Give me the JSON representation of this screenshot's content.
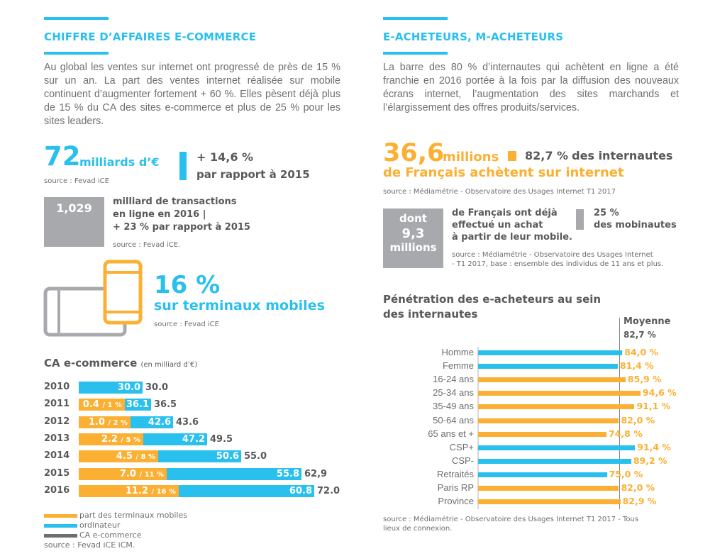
{
  "colors": {
    "blue": "#29c0ee",
    "orange": "#fbb034",
    "gray": "#a7a9ac",
    "dark_gray": "#58595b"
  },
  "left": {
    "title": "CHIFFRE D’AFFAIRES E-COMMERCE",
    "intro": "Au global les ventes sur internet ont progressé de près de 15 % sur un an. La part des ventes internet réalisée sur mobile continuent d’augmenter fortement + 60 %. Elles pèsent déjà plus de 15 % du CA des sites e-commerce et plus de 25 % pour les sites leaders.",
    "kpi_value": "72",
    "kpi_unit": "milliards d’€",
    "kpi_source": "source : Fevad iCE",
    "growth_value": "+ 14,6 %",
    "growth_label": "par rapport à 2015",
    "transactions_value": "1,029",
    "transactions_line1": "milliard de transactions",
    "transactions_line2": "en ligne en 2016 |",
    "transactions_line3": "+ 23 % par rapport à 2015",
    "transactions_source": "source : Fevad iCE.",
    "mobile_share": "16 %",
    "mobile_label": "sur terminaux mobiles",
    "mobile_source": "source : Fevad iCE",
    "chart_title": "CA e-commerce",
    "chart_subtitle": "(en milliard d’€)",
    "legend": [
      {
        "label": "part des terminaux mobiles",
        "color": "#fbb034"
      },
      {
        "label": "ordinateur",
        "color": "#29c0ee"
      },
      {
        "label": "CA e-commerce",
        "color": "#6d6e71"
      }
    ],
    "chart_source": "source : Fevad iCE iCM."
  },
  "right": {
    "title": "E-ACHETEURS, M-ACHETEURS",
    "intro": "La barre des 80 % d’internautes qui achètent en ligne a été franchie en 2016 portée à la fois par la diffusion des nouveaux écrans internet, l’augmentation des sites marchands et l’élargissement des offres produits/services.",
    "buyers_value": "36,6",
    "buyers_unit": "millions",
    "buyers_label": "de Français achètent sur internet",
    "share_value": "82,7 %",
    "share_label": "des internautes",
    "buyers_source": "source : Médiamétrie - Observatoire des Usages Internet T1 2017",
    "mobile_box_line1": "dont",
    "mobile_box_line2": "9,3",
    "mobile_box_line3": "millions",
    "mobile_text1": "de Français ont déjà",
    "mobile_text2": "effectué un achat",
    "mobile_text3": "à partir de leur mobile.",
    "mobinautes_value": "25 %",
    "mobinautes_label": "des mobinautes",
    "mobile_source1": "source : Médiamétrie - Observatoire des Usages Internet",
    "mobile_source2": "- T1 2017, base : ensemble des individus de 11 ans et plus.",
    "chart_title1": "Pénétration des e-acheteurs au sein",
    "chart_title2": "des internautes",
    "avg_label": "Moyenne",
    "avg_value": "82,7 %",
    "chart_source1": "source : Médiamétrie - Observatoire des Usages Internet T1 2017 - Tous",
    "chart_source2": "lieux de connexion."
  },
  "chart_data": [
    {
      "type": "bar",
      "orientation": "horizontal-stacked",
      "title": "CA e-commerce (en milliard d’€)",
      "categories": [
        "2010",
        "2011",
        "2012",
        "2013",
        "2014",
        "2015",
        "2016"
      ],
      "series": [
        {
          "name": "part des terminaux mobiles",
          "values": [
            null,
            0.4,
            1.0,
            2.2,
            4.5,
            7.0,
            11.2
          ],
          "labels": [
            "",
            "0.4",
            "1.0",
            "2.2",
            "4.5",
            "7.0",
            "11.2"
          ],
          "share_labels": [
            "",
            "/ 1 %",
            "/ 2 %",
            "/ 5 %",
            "/ 8 %",
            "/ 11 %",
            "/ 16 %"
          ]
        },
        {
          "name": "ordinateur",
          "values": [
            30.0,
            36.1,
            42.6,
            47.2,
            50.6,
            55.8,
            60.8
          ],
          "labels": [
            "30.0",
            "36.1",
            "42.6",
            "47.2",
            "50.6",
            "55.8",
            "60.8"
          ]
        },
        {
          "name": "CA e-commerce",
          "values": [
            30.0,
            36.5,
            43.6,
            49.5,
            55.0,
            62.9,
            72.0
          ],
          "labels": [
            "30.0",
            "36.5",
            "43.6",
            "49.5",
            "55.0",
            "62,9",
            "72.0"
          ]
        }
      ],
      "legend_position": "bottom-left"
    },
    {
      "type": "bar",
      "orientation": "horizontal",
      "title": "Pénétration des e-acheteurs au sein des internautes",
      "categories": [
        "Homme",
        "Femme",
        "16-24 ans",
        "25-34 ans",
        "35-49 ans",
        "50-64 ans",
        "65 ans et +",
        "CSP+",
        "CSP-",
        "Retraités",
        "Paris RP",
        "Province"
      ],
      "values": [
        84.0,
        81.4,
        85.9,
        94.6,
        91.1,
        82.0,
        74.8,
        91.4,
        89.2,
        75.0,
        82.0,
        82.9
      ],
      "labels": [
        "84,0 %",
        "81,4 %",
        "85,9 %",
        "94,6 %",
        "91,1 %",
        "82,0 %",
        "74,8 %",
        "91,4 %",
        "89,2 %",
        "75,0 %",
        "82,0 %",
        "82,9 %"
      ],
      "bar_colors": [
        "#29c0ee",
        "#29c0ee",
        "#fbb034",
        "#fbb034",
        "#fbb034",
        "#fbb034",
        "#fbb034",
        "#29c0ee",
        "#29c0ee",
        "#29c0ee",
        "#fbb034",
        "#fbb034"
      ],
      "reference_line": {
        "label": "Moyenne",
        "value": 82.7
      },
      "unit": "%",
      "xlim": [
        0,
        100
      ]
    }
  ]
}
